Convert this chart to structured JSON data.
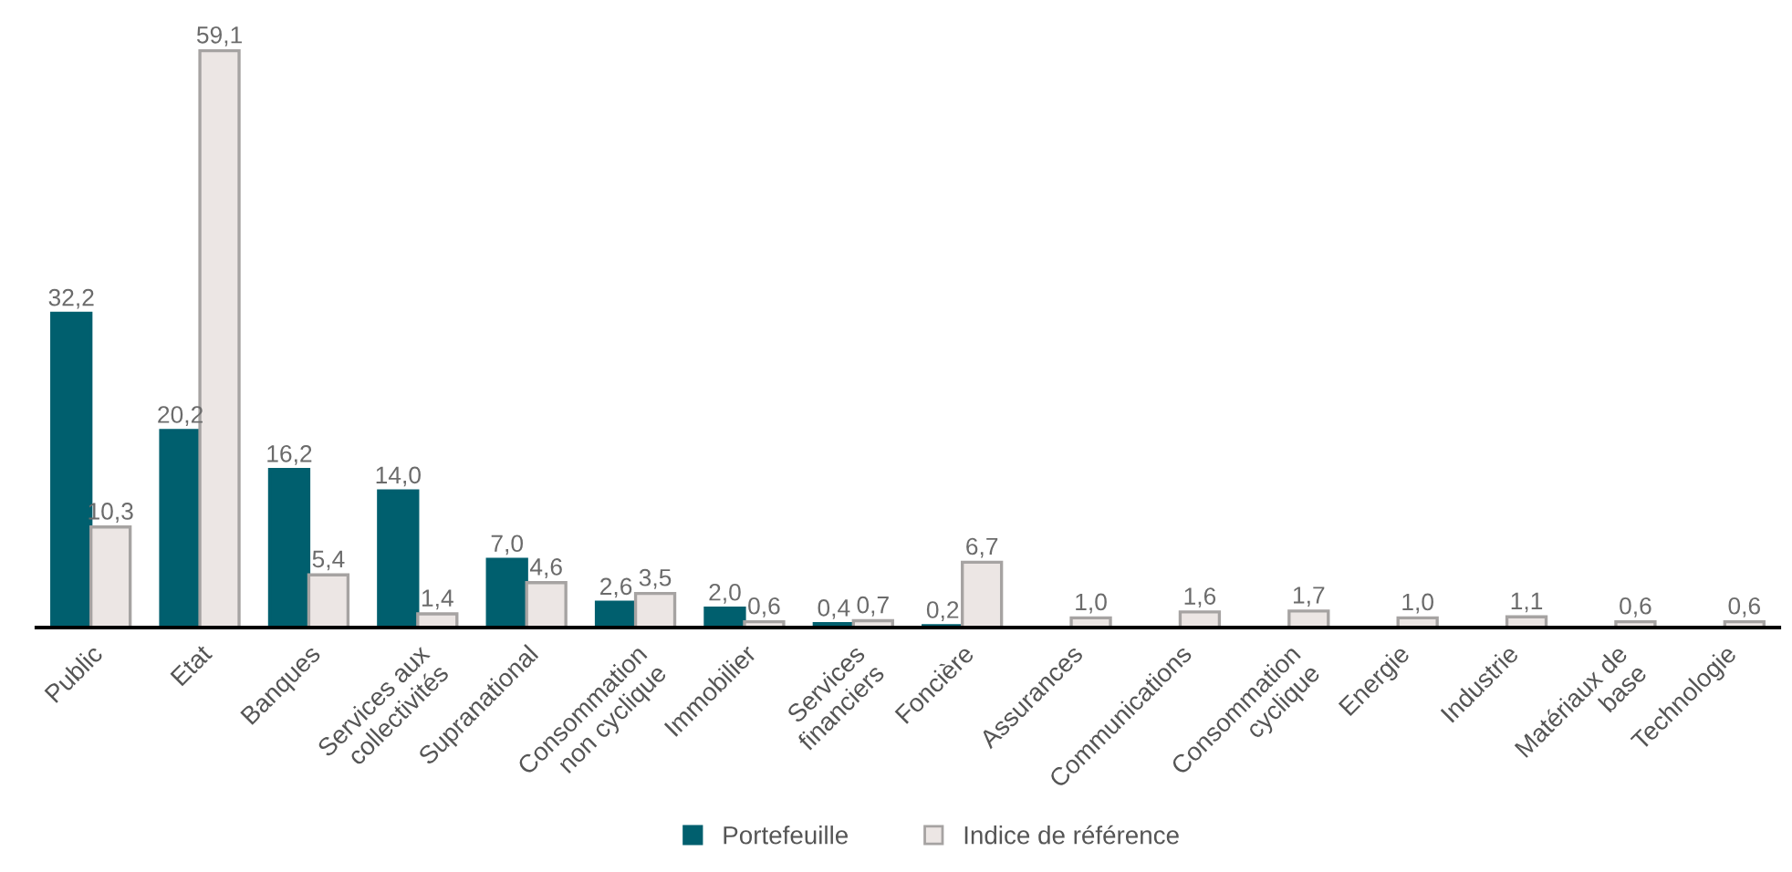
{
  "chart_data": {
    "type": "bar",
    "categories": [
      "Public",
      "Etat",
      "Banques",
      "Services aux\ncollectivités",
      "Supranational",
      "Consommation\nnon cyclique",
      "Immobilier",
      "Services\nfinanciers",
      "Foncière",
      "Assurances",
      "Communications",
      "Consommation\ncyclique",
      "Energie",
      "Industrie",
      "Matériaux de\nbase",
      "Technologie"
    ],
    "series": [
      {
        "name": "Portefeuille",
        "color": "#005f6e",
        "values": [
          32.2,
          20.2,
          16.2,
          14.0,
          7.0,
          2.6,
          2.0,
          0.4,
          0.2,
          null,
          null,
          null,
          null,
          null,
          null,
          null
        ],
        "value_labels": [
          "32,2",
          "20,2",
          "16,2",
          "14,0",
          "7,0",
          "2,6",
          "2,0",
          "0,4",
          "0,2",
          null,
          null,
          null,
          null,
          null,
          null,
          null
        ]
      },
      {
        "name": "Indice de référence",
        "color": "#ece6e4",
        "values": [
          10.3,
          59.1,
          5.4,
          1.4,
          4.6,
          3.5,
          0.6,
          0.7,
          6.7,
          1.0,
          1.6,
          1.7,
          1.0,
          1.1,
          0.6,
          0.6
        ],
        "value_labels": [
          "10,3",
          "59,1",
          "5,4",
          "1,4",
          "4,6",
          "3,5",
          "0,6",
          "0,7",
          "6,7",
          "1,0",
          "1,6",
          "1,7",
          "1,0",
          "1,1",
          "0,6",
          "0,6"
        ]
      }
    ],
    "legend": "bottom",
    "grid": false
  }
}
